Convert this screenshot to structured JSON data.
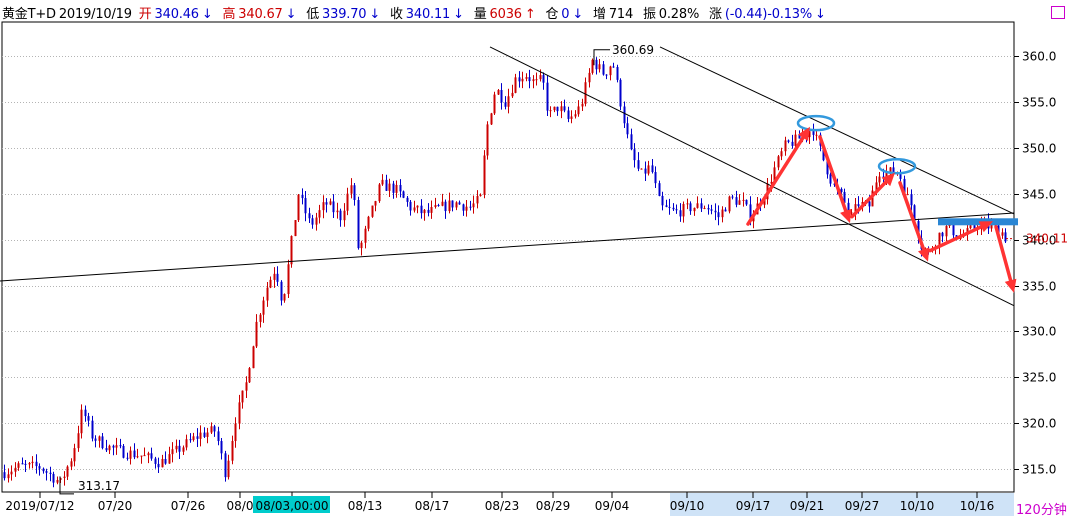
{
  "header": {
    "instrument": "黄金T+D",
    "date": "2019/10/19",
    "open_label": "开",
    "open_value": "340.46",
    "open_arrow": "↓",
    "high_label": "高",
    "high_value": "340.67",
    "high_arrow": "↓",
    "low_label": "低",
    "low_value": "339.70",
    "low_arrow": "↓",
    "close_label": "收",
    "close_value": "340.11",
    "close_arrow": "↓",
    "volume_label": "量",
    "volume_value": "6036",
    "volume_arrow": "↑",
    "position_label": "仓",
    "position_value": "0",
    "position_arrow": "↓",
    "increase_label": "增",
    "increase_value": "714",
    "amplitude_label": "振",
    "amplitude_value": "0.28%",
    "change_label": "涨",
    "change_value": "(-0.44)-0.13%",
    "change_arrow": "↓"
  },
  "period": "120分钟",
  "colors": {
    "up": "#cc0000",
    "down": "#0000cc",
    "grid": "#b4b4b4",
    "axis": "#000000",
    "arrow": "#ff3333",
    "ellipse": "#3399dd",
    "band": "#2a86d4",
    "highlight_cursor": "#00cccc",
    "highlight_range": "#cfe3f7",
    "last_price": "#cc0000"
  },
  "chart_data": {
    "type": "candlestick",
    "x_ticks": [
      "2019/07/12",
      "07/20",
      "07/26",
      "08/0",
      "08/03,00:00",
      "08/13",
      "08/17",
      "08/23",
      "08/29",
      "09/04",
      "09/10",
      "09/17",
      "09/21",
      "09/27",
      "10/10",
      "10/16"
    ],
    "y_ticks": [
      315,
      320,
      325,
      330,
      335,
      340,
      345,
      350,
      355,
      360
    ],
    "ylim": [
      312.5,
      363.5
    ],
    "annotations": {
      "high_label": "360.69",
      "low_label": "313.17",
      "last_price": "340.11",
      "resistance_level": 342.0
    },
    "trendlines": [
      {
        "name": "support",
        "from": [
          0,
          335.5
        ],
        "to": [
          1014,
          342.9
        ]
      },
      {
        "name": "channel_upper",
        "from": [
          660,
          361.0
        ],
        "to": [
          1014,
          342.8
        ]
      },
      {
        "name": "channel_lower",
        "from": [
          490,
          361.0
        ],
        "to": [
          1014,
          332.8
        ]
      }
    ],
    "arrows": [
      {
        "from": [
          748,
          341.7
        ],
        "to": [
          810,
          352.3
        ]
      },
      {
        "from": [
          820,
          351.2
        ],
        "to": [
          850,
          341.8
        ]
      },
      {
        "from": [
          852,
          342.5
        ],
        "to": [
          895,
          347.3
        ]
      },
      {
        "from": [
          900,
          346.2
        ],
        "to": [
          928,
          337.6
        ]
      },
      {
        "from": [
          930,
          338.8
        ],
        "to": [
          993,
          342.0
        ]
      },
      {
        "from": [
          996,
          341.4
        ],
        "to": [
          1014,
          334.2
        ]
      }
    ],
    "ellipses": [
      {
        "center": [
          816,
          352.7
        ]
      },
      {
        "center": [
          897,
          348.0
        ]
      }
    ],
    "series_anchors": [
      [
        0,
        314.5
      ],
      [
        20,
        315.3
      ],
      [
        40,
        315.2
      ],
      [
        60,
        313.5
      ],
      [
        72,
        316.5
      ],
      [
        82,
        321.5
      ],
      [
        92,
        318.5
      ],
      [
        110,
        317.3
      ],
      [
        125,
        316.8
      ],
      [
        140,
        316.5
      ],
      [
        160,
        315.7
      ],
      [
        180,
        317.3
      ],
      [
        200,
        318.8
      ],
      [
        215,
        319.2
      ],
      [
        225,
        314.5
      ],
      [
        235,
        320.5
      ],
      [
        245,
        324.0
      ],
      [
        255,
        330.5
      ],
      [
        265,
        334.5
      ],
      [
        275,
        337.0
      ],
      [
        282,
        333.0
      ],
      [
        290,
        339.0
      ],
      [
        298,
        345.0
      ],
      [
        310,
        341.5
      ],
      [
        325,
        344.0
      ],
      [
        340,
        342.5
      ],
      [
        352,
        346.5
      ],
      [
        358,
        338.5
      ],
      [
        368,
        342.0
      ],
      [
        380,
        346.0
      ],
      [
        395,
        345.5
      ],
      [
        410,
        343.5
      ],
      [
        425,
        342.8
      ],
      [
        440,
        343.5
      ],
      [
        455,
        344.0
      ],
      [
        470,
        343.5
      ],
      [
        480,
        344.5
      ],
      [
        486,
        352.0
      ],
      [
        495,
        356.5
      ],
      [
        505,
        355.0
      ],
      [
        515,
        357.5
      ],
      [
        525,
        358.0
      ],
      [
        535,
        357.0
      ],
      [
        542,
        357.5
      ],
      [
        548,
        353.5
      ],
      [
        558,
        354.5
      ],
      [
        568,
        353.0
      ],
      [
        580,
        354.5
      ],
      [
        592,
        359.5
      ],
      [
        604,
        358.0
      ],
      [
        612,
        359.5
      ],
      [
        620,
        355.0
      ],
      [
        630,
        349.5
      ],
      [
        640,
        347.0
      ],
      [
        650,
        348.0
      ],
      [
        660,
        343.5
      ],
      [
        675,
        343.0
      ],
      [
        690,
        343.5
      ],
      [
        705,
        343.7
      ],
      [
        718,
        342.5
      ],
      [
        730,
        344.5
      ],
      [
        742,
        344.0
      ],
      [
        750,
        342.5
      ],
      [
        765,
        345.2
      ],
      [
        775,
        348.0
      ],
      [
        785,
        350.3
      ],
      [
        795,
        350.8
      ],
      [
        805,
        351.5
      ],
      [
        812,
        352.2
      ],
      [
        822,
        349.0
      ],
      [
        832,
        346.0
      ],
      [
        842,
        344.5
      ],
      [
        850,
        342.3
      ],
      [
        858,
        344.0
      ],
      [
        868,
        343.5
      ],
      [
        878,
        347.5
      ],
      [
        888,
        347.3
      ],
      [
        898,
        347.5
      ],
      [
        905,
        345.0
      ],
      [
        912,
        343.5
      ],
      [
        920,
        339.5
      ],
      [
        928,
        338.5
      ],
      [
        938,
        340.5
      ],
      [
        948,
        341.5
      ],
      [
        958,
        340.2
      ],
      [
        968,
        340.8
      ],
      [
        978,
        341.8
      ],
      [
        988,
        341.4
      ],
      [
        1000,
        341.0
      ],
      [
        1006,
        340.1
      ]
    ]
  }
}
